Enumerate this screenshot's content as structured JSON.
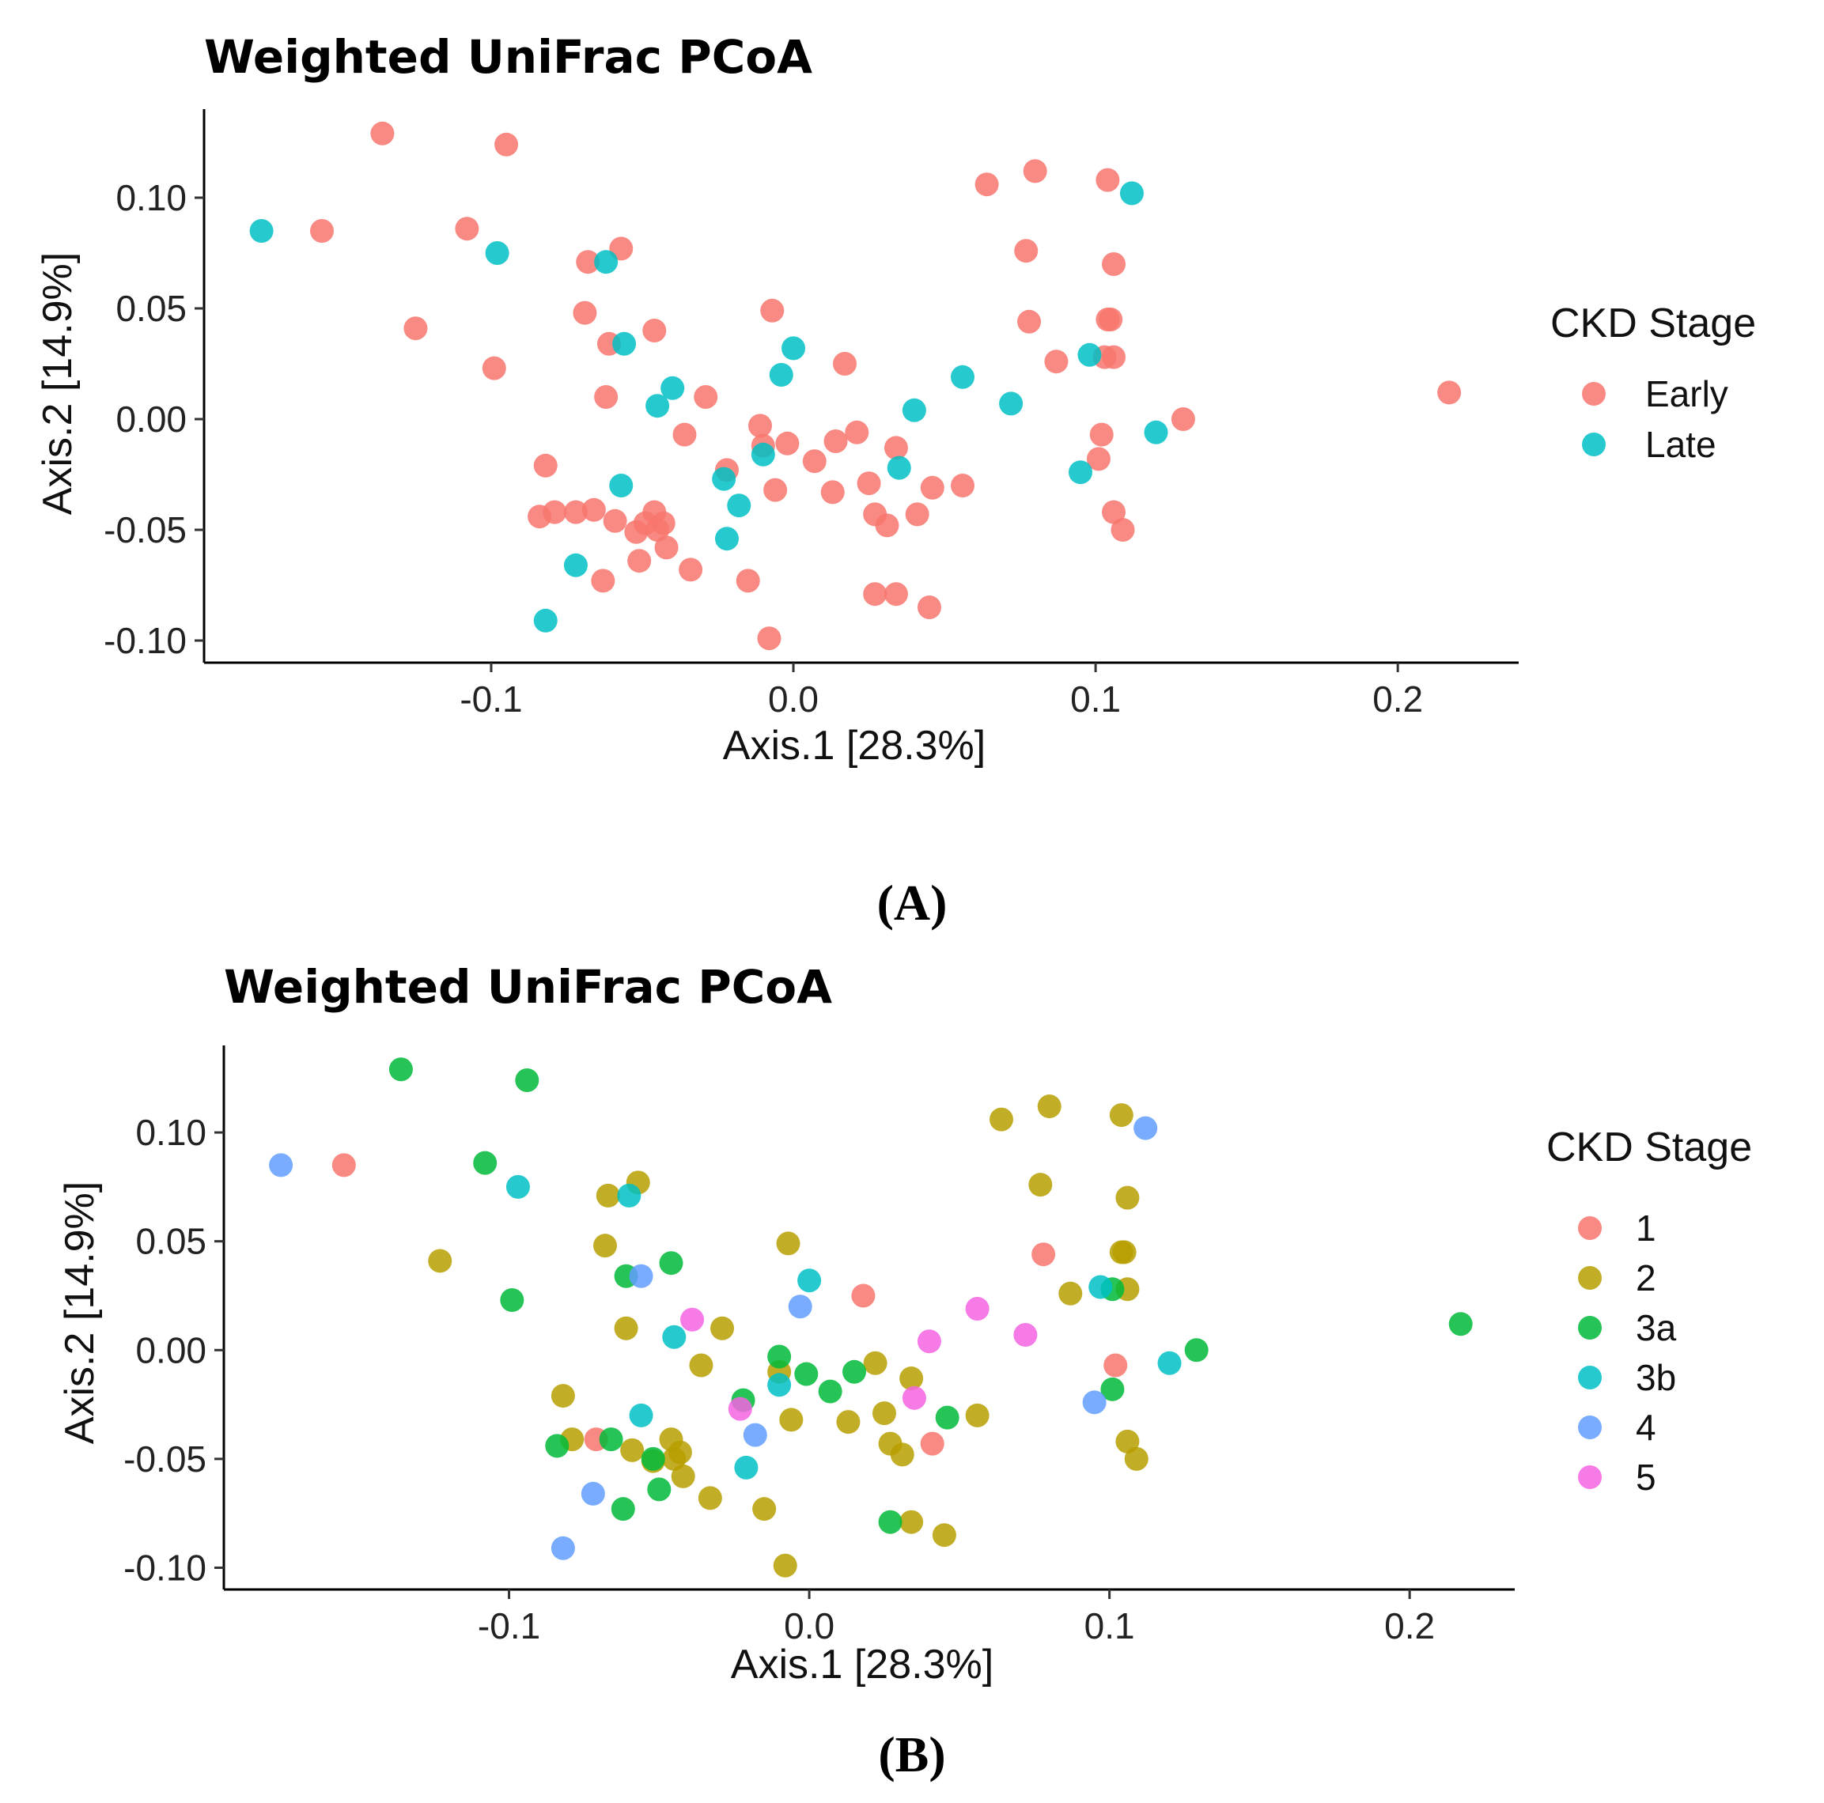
{
  "panels": [
    {
      "panel_label": "(A)",
      "legend": {
        "title": "CKD Stage",
        "items": [
          {
            "label": "Early",
            "color": "#F8766D"
          },
          {
            "label": "Late",
            "color": "#00BFC4"
          }
        ]
      },
      "chart_data": {
        "type": "scatter",
        "title": "Weighted UniFrac PCoA",
        "xlabel": "Axis.1   [28.3%]",
        "ylabel": "Axis.2   [14.9%]",
        "xlim": [
          -0.195,
          0.24
        ],
        "ylim": [
          -0.11,
          0.14
        ],
        "xticks": [
          -0.1,
          0.0,
          0.1,
          0.2
        ],
        "xtick_labels": [
          "-0.1",
          "0.0",
          "0.1",
          "0.2"
        ],
        "yticks": [
          -0.1,
          -0.05,
          0.0,
          0.05,
          0.1
        ],
        "ytick_labels": [
          "-0.10",
          "-0.05",
          "0.00",
          "0.05",
          "0.10"
        ],
        "grid": false,
        "legend_position": "right",
        "series": [
          {
            "name": "Early",
            "color": "#F8766D",
            "points": [
              [
                -0.136,
                0.129
              ],
              [
                -0.095,
                0.124
              ],
              [
                -0.156,
                0.085
              ],
              [
                -0.108,
                0.086
              ],
              [
                -0.125,
                0.041
              ],
              [
                -0.099,
                0.023
              ],
              [
                -0.057,
                0.077
              ],
              [
                -0.068,
                0.071
              ],
              [
                -0.069,
                0.048
              ],
              [
                -0.061,
                0.034
              ],
              [
                -0.046,
                0.04
              ],
              [
                -0.062,
                0.01
              ],
              [
                -0.029,
                0.01
              ],
              [
                -0.036,
                -0.007
              ],
              [
                -0.082,
                -0.021
              ],
              [
                -0.084,
                -0.044
              ],
              [
                -0.079,
                -0.042
              ],
              [
                -0.072,
                -0.042
              ],
              [
                -0.066,
                -0.041
              ],
              [
                -0.059,
                -0.046
              ],
              [
                -0.052,
                -0.051
              ],
              [
                -0.049,
                -0.047
              ],
              [
                -0.046,
                -0.042
              ],
              [
                -0.045,
                -0.05
              ],
              [
                -0.043,
                -0.047
              ],
              [
                -0.042,
                -0.058
              ],
              [
                -0.051,
                -0.064
              ],
              [
                -0.063,
                -0.073
              ],
              [
                -0.034,
                -0.068
              ],
              [
                -0.015,
                -0.073
              ],
              [
                -0.022,
                -0.023
              ],
              [
                -0.011,
                -0.003
              ],
              [
                -0.01,
                -0.012
              ],
              [
                -0.006,
                -0.032
              ],
              [
                -0.007,
                0.049
              ],
              [
                -0.008,
                -0.099
              ],
              [
                -0.002,
                -0.011
              ],
              [
                0.007,
                -0.019
              ],
              [
                0.013,
                -0.033
              ],
              [
                0.014,
                -0.01
              ],
              [
                0.017,
                0.025
              ],
              [
                0.021,
                -0.006
              ],
              [
                0.025,
                -0.029
              ],
              [
                0.027,
                -0.043
              ],
              [
                0.031,
                -0.048
              ],
              [
                0.034,
                -0.013
              ],
              [
                0.027,
                -0.079
              ],
              [
                0.034,
                -0.079
              ],
              [
                0.045,
                -0.085
              ],
              [
                0.041,
                -0.043
              ],
              [
                0.046,
                -0.031
              ],
              [
                0.056,
                -0.03
              ],
              [
                0.064,
                0.106
              ],
              [
                0.08,
                0.112
              ],
              [
                0.077,
                0.076
              ],
              [
                0.078,
                0.044
              ],
              [
                0.087,
                0.026
              ],
              [
                0.103,
                0.028
              ],
              [
                0.106,
                0.028
              ],
              [
                0.104,
                0.045
              ],
              [
                0.105,
                0.045
              ],
              [
                0.106,
                0.07
              ],
              [
                0.104,
                0.108
              ],
              [
                0.102,
                -0.007
              ],
              [
                0.101,
                -0.018
              ],
              [
                0.106,
                -0.042
              ],
              [
                0.109,
                -0.05
              ],
              [
                0.129,
                0.0
              ],
              [
                0.217,
                0.012
              ]
            ]
          },
          {
            "name": "Late",
            "color": "#00BFC4",
            "points": [
              [
                -0.176,
                0.085
              ],
              [
                -0.098,
                0.075
              ],
              [
                -0.062,
                0.071
              ],
              [
                -0.056,
                0.034
              ],
              [
                -0.04,
                0.014
              ],
              [
                -0.045,
                0.006
              ],
              [
                -0.057,
                -0.03
              ],
              [
                -0.072,
                -0.066
              ],
              [
                -0.082,
                -0.091
              ],
              [
                -0.023,
                -0.027
              ],
              [
                -0.018,
                -0.039
              ],
              [
                -0.022,
                -0.054
              ],
              [
                -0.01,
                -0.016
              ],
              [
                -0.004,
                0.02
              ],
              [
                0.0,
                0.032
              ],
              [
                0.035,
                -0.022
              ],
              [
                0.04,
                0.004
              ],
              [
                0.056,
                0.019
              ],
              [
                0.072,
                0.007
              ],
              [
                0.095,
                -0.024
              ],
              [
                0.098,
                0.029
              ],
              [
                0.112,
                0.102
              ],
              [
                0.12,
                -0.006
              ]
            ]
          }
        ]
      }
    },
    {
      "panel_label": "(B)",
      "legend": {
        "title": "CKD Stage",
        "items": [
          {
            "label": "1",
            "color": "#F8766D"
          },
          {
            "label": "2",
            "color": "#B79F00"
          },
          {
            "label": "3a",
            "color": "#00BA38"
          },
          {
            "label": "3b",
            "color": "#00BFC4"
          },
          {
            "label": "4",
            "color": "#619CFF"
          },
          {
            "label": "5",
            "color": "#F564E3"
          }
        ]
      },
      "chart_data": {
        "type": "scatter",
        "title": "Weighted UniFrac PCoA",
        "xlabel": "Axis.1   [28.3%]",
        "ylabel": "Axis.2   [14.9%]",
        "xlim": [
          -0.195,
          0.235
        ],
        "ylim": [
          -0.11,
          0.14
        ],
        "xticks": [
          -0.1,
          0.0,
          0.1,
          0.2
        ],
        "xtick_labels": [
          "-0.1",
          "0.0",
          "0.1",
          "0.2"
        ],
        "yticks": [
          -0.1,
          -0.05,
          0.0,
          0.05,
          0.1
        ],
        "ytick_labels": [
          "-0.10",
          "-0.05",
          "0.00",
          "0.05",
          "0.10"
        ],
        "grid": false,
        "legend_position": "right",
        "series": [
          {
            "name": "1",
            "color": "#F8766D",
            "points": [
              [
                -0.155,
                0.085
              ],
              [
                -0.071,
                -0.041
              ],
              [
                0.018,
                0.025
              ],
              [
                0.041,
                -0.043
              ],
              [
                0.078,
                0.044
              ],
              [
                0.102,
                -0.007
              ]
            ]
          },
          {
            "name": "2",
            "color": "#B79F00",
            "points": [
              [
                -0.123,
                0.041
              ],
              [
                -0.067,
                0.071
              ],
              [
                -0.057,
                0.077
              ],
              [
                -0.068,
                0.048
              ],
              [
                -0.061,
                0.01
              ],
              [
                -0.029,
                0.01
              ],
              [
                -0.036,
                -0.007
              ],
              [
                -0.082,
                -0.021
              ],
              [
                -0.079,
                -0.041
              ],
              [
                -0.059,
                -0.046
              ],
              [
                -0.052,
                -0.051
              ],
              [
                -0.046,
                -0.041
              ],
              [
                -0.045,
                -0.05
              ],
              [
                -0.043,
                -0.047
              ],
              [
                -0.042,
                -0.058
              ],
              [
                -0.033,
                -0.068
              ],
              [
                -0.015,
                -0.073
              ],
              [
                -0.01,
                -0.01
              ],
              [
                -0.006,
                -0.032
              ],
              [
                -0.007,
                0.049
              ],
              [
                -0.008,
                -0.099
              ],
              [
                0.013,
                -0.033
              ],
              [
                0.022,
                -0.006
              ],
              [
                0.025,
                -0.029
              ],
              [
                0.027,
                -0.043
              ],
              [
                0.031,
                -0.048
              ],
              [
                0.034,
                -0.013
              ],
              [
                0.034,
                -0.079
              ],
              [
                0.045,
                -0.085
              ],
              [
                0.056,
                -0.03
              ],
              [
                0.064,
                0.106
              ],
              [
                0.08,
                0.112
              ],
              [
                0.077,
                0.076
              ],
              [
                0.087,
                0.026
              ],
              [
                0.104,
                0.108
              ],
              [
                0.106,
                0.07
              ],
              [
                0.105,
                0.045
              ],
              [
                0.104,
                0.045
              ],
              [
                0.106,
                0.028
              ],
              [
                0.106,
                -0.042
              ],
              [
                0.109,
                -0.05
              ]
            ]
          },
          {
            "name": "3a",
            "color": "#00BA38",
            "points": [
              [
                -0.136,
                0.129
              ],
              [
                -0.094,
                0.124
              ],
              [
                -0.108,
                0.086
              ],
              [
                -0.099,
                0.023
              ],
              [
                -0.061,
                0.034
              ],
              [
                -0.046,
                0.04
              ],
              [
                -0.084,
                -0.044
              ],
              [
                -0.066,
                -0.041
              ],
              [
                -0.052,
                -0.05
              ],
              [
                -0.05,
                -0.064
              ],
              [
                -0.062,
                -0.073
              ],
              [
                -0.022,
                -0.023
              ],
              [
                -0.01,
                -0.003
              ],
              [
                -0.001,
                -0.011
              ],
              [
                0.007,
                -0.019
              ],
              [
                0.015,
                -0.01
              ],
              [
                0.027,
                -0.079
              ],
              [
                0.046,
                -0.031
              ],
              [
                0.101,
                -0.018
              ],
              [
                0.101,
                0.028
              ],
              [
                0.129,
                0.0
              ],
              [
                0.217,
                0.012
              ]
            ]
          },
          {
            "name": "3b",
            "color": "#00BFC4",
            "points": [
              [
                -0.097,
                0.075
              ],
              [
                -0.06,
                0.071
              ],
              [
                -0.056,
                -0.03
              ],
              [
                -0.045,
                0.006
              ],
              [
                -0.021,
                -0.054
              ],
              [
                -0.01,
                -0.016
              ],
              [
                0.0,
                0.032
              ],
              [
                0.097,
                0.029
              ],
              [
                0.12,
                -0.006
              ]
            ]
          },
          {
            "name": "4",
            "color": "#619CFF",
            "points": [
              [
                -0.176,
                0.085
              ],
              [
                -0.056,
                0.034
              ],
              [
                -0.072,
                -0.066
              ],
              [
                -0.082,
                -0.091
              ],
              [
                -0.018,
                -0.039
              ],
              [
                -0.003,
                0.02
              ],
              [
                0.095,
                -0.024
              ],
              [
                0.112,
                0.102
              ]
            ]
          },
          {
            "name": "5",
            "color": "#F564E3",
            "points": [
              [
                -0.039,
                0.014
              ],
              [
                -0.023,
                -0.027
              ],
              [
                0.035,
                -0.022
              ],
              [
                0.04,
                0.004
              ],
              [
                0.056,
                0.019
              ],
              [
                0.072,
                0.007
              ]
            ]
          }
        ]
      }
    }
  ]
}
